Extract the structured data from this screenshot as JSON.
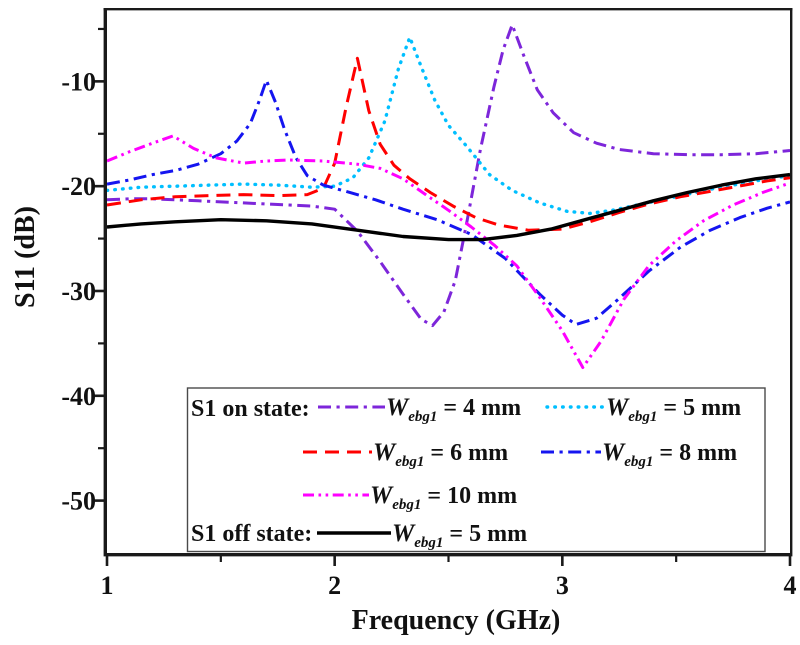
{
  "chart_data": {
    "type": "line",
    "title": "",
    "xlabel": "Frequency (GHz)",
    "ylabel": "S11 (dB)",
    "xlim": [
      1,
      4
    ],
    "ylim": [
      -55,
      -3
    ],
    "x_major_ticks": [
      1,
      2,
      3,
      4
    ],
    "x_minor_ticks": [
      1.5,
      2.5,
      3.5
    ],
    "y_major_ticks": [
      -10,
      -20,
      -30,
      -40,
      -50
    ],
    "y_minor_ticks": [
      -5,
      -15,
      -25,
      -35,
      -45
    ],
    "grid": false,
    "legend_position": "inside-bottom-center",
    "series": [
      {
        "id": "on-4mm",
        "name": "S1 on state: Webg1 = 4 mm",
        "color": "#7D26DA",
        "dash": "dashdot",
        "width": 3,
        "points": [
          [
            1.0,
            -21.3
          ],
          [
            1.1,
            -21.2
          ],
          [
            1.2,
            -21.2
          ],
          [
            1.3,
            -21.3
          ],
          [
            1.4,
            -21.4
          ],
          [
            1.5,
            -21.5
          ],
          [
            1.6,
            -21.6
          ],
          [
            1.7,
            -21.7
          ],
          [
            1.8,
            -21.8
          ],
          [
            1.9,
            -21.9
          ],
          [
            2.0,
            -22.2
          ],
          [
            2.1,
            -24.3
          ],
          [
            2.2,
            -27.2
          ],
          [
            2.3,
            -30.3
          ],
          [
            2.38,
            -32.7
          ],
          [
            2.43,
            -33.3
          ],
          [
            2.48,
            -32.0
          ],
          [
            2.53,
            -29.0
          ],
          [
            2.58,
            -23.5
          ],
          [
            2.64,
            -16.5
          ],
          [
            2.7,
            -10.5
          ],
          [
            2.74,
            -7.0
          ],
          [
            2.78,
            -4.6
          ],
          [
            2.83,
            -7.5
          ],
          [
            2.89,
            -10.8
          ],
          [
            2.96,
            -13.0
          ],
          [
            3.05,
            -14.9
          ],
          [
            3.15,
            -15.9
          ],
          [
            3.25,
            -16.5
          ],
          [
            3.4,
            -16.9
          ],
          [
            3.55,
            -17.0
          ],
          [
            3.7,
            -17.0
          ],
          [
            3.85,
            -16.9
          ],
          [
            4.0,
            -16.6
          ]
        ]
      },
      {
        "id": "on-5mm",
        "name": "S1 on state: Webg1 = 5 mm",
        "color": "#00BFFF",
        "dash": "dot",
        "width": 3.4,
        "points": [
          [
            1.0,
            -20.4
          ],
          [
            1.15,
            -20.1
          ],
          [
            1.3,
            -20.0
          ],
          [
            1.45,
            -19.9
          ],
          [
            1.6,
            -19.8
          ],
          [
            1.75,
            -19.9
          ],
          [
            1.9,
            -20.1
          ],
          [
            2.0,
            -20.0
          ],
          [
            2.08,
            -19.2
          ],
          [
            2.15,
            -17.3
          ],
          [
            2.22,
            -13.8
          ],
          [
            2.28,
            -8.8
          ],
          [
            2.33,
            -5.8
          ],
          [
            2.38,
            -8.6
          ],
          [
            2.44,
            -11.8
          ],
          [
            2.5,
            -14.2
          ],
          [
            2.58,
            -16.2
          ],
          [
            2.68,
            -18.9
          ],
          [
            2.78,
            -20.4
          ],
          [
            2.9,
            -21.6
          ],
          [
            3.02,
            -22.4
          ],
          [
            3.12,
            -22.6
          ],
          [
            3.22,
            -22.3
          ],
          [
            3.35,
            -21.7
          ],
          [
            3.5,
            -21.0
          ],
          [
            3.65,
            -20.3
          ],
          [
            3.8,
            -19.7
          ],
          [
            3.9,
            -19.3
          ],
          [
            4.0,
            -19.0
          ]
        ]
      },
      {
        "id": "on-6mm",
        "name": "S1 on state: Webg1 = 6 mm",
        "color": "#FF0000",
        "dash": "dash",
        "width": 3,
        "points": [
          [
            1.0,
            -21.8
          ],
          [
            1.15,
            -21.3
          ],
          [
            1.3,
            -21.0
          ],
          [
            1.45,
            -20.9
          ],
          [
            1.6,
            -20.8
          ],
          [
            1.75,
            -20.9
          ],
          [
            1.88,
            -20.8
          ],
          [
            1.95,
            -20.2
          ],
          [
            2.0,
            -17.8
          ],
          [
            2.05,
            -12.5
          ],
          [
            2.1,
            -7.8
          ],
          [
            2.15,
            -12.8
          ],
          [
            2.2,
            -16.0
          ],
          [
            2.26,
            -18.0
          ],
          [
            2.33,
            -19.3
          ],
          [
            2.42,
            -20.6
          ],
          [
            2.52,
            -21.9
          ],
          [
            2.62,
            -23.0
          ],
          [
            2.72,
            -23.7
          ],
          [
            2.85,
            -24.2
          ],
          [
            3.0,
            -24.1
          ],
          [
            3.12,
            -23.4
          ],
          [
            3.25,
            -22.5
          ],
          [
            3.38,
            -21.7
          ],
          [
            3.52,
            -21.0
          ],
          [
            3.65,
            -20.5
          ],
          [
            3.8,
            -19.9
          ],
          [
            3.9,
            -19.5
          ],
          [
            4.0,
            -19.2
          ]
        ]
      },
      {
        "id": "on-8mm",
        "name": "S1 on state: Webg1 = 8 mm",
        "color": "#1515F0",
        "dash": "dashdot",
        "width": 3,
        "points": [
          [
            1.0,
            -19.8
          ],
          [
            1.1,
            -19.4
          ],
          [
            1.2,
            -18.9
          ],
          [
            1.3,
            -18.5
          ],
          [
            1.4,
            -17.9
          ],
          [
            1.5,
            -16.9
          ],
          [
            1.57,
            -15.7
          ],
          [
            1.63,
            -14.0
          ],
          [
            1.67,
            -11.8
          ],
          [
            1.7,
            -9.9
          ],
          [
            1.74,
            -12.0
          ],
          [
            1.78,
            -14.6
          ],
          [
            1.83,
            -17.3
          ],
          [
            1.88,
            -19.0
          ],
          [
            1.95,
            -19.9
          ],
          [
            2.05,
            -20.5
          ],
          [
            2.18,
            -21.3
          ],
          [
            2.3,
            -22.2
          ],
          [
            2.45,
            -23.2
          ],
          [
            2.6,
            -24.6
          ],
          [
            2.75,
            -26.9
          ],
          [
            2.9,
            -30.3
          ],
          [
            3.0,
            -32.3
          ],
          [
            3.06,
            -33.2
          ],
          [
            3.15,
            -32.6
          ],
          [
            3.25,
            -30.7
          ],
          [
            3.38,
            -28.1
          ],
          [
            3.52,
            -25.8
          ],
          [
            3.65,
            -24.2
          ],
          [
            3.78,
            -23.0
          ],
          [
            3.9,
            -22.1
          ],
          [
            4.0,
            -21.5
          ]
        ]
      },
      {
        "id": "on-10mm",
        "name": "S1 on state: Webg1 = 10 mm",
        "color": "#FF00FF",
        "dash": "dashdotdot",
        "width": 3,
        "points": [
          [
            1.0,
            -17.6
          ],
          [
            1.1,
            -16.7
          ],
          [
            1.2,
            -15.9
          ],
          [
            1.29,
            -15.2
          ],
          [
            1.38,
            -16.4
          ],
          [
            1.48,
            -17.3
          ],
          [
            1.6,
            -17.8
          ],
          [
            1.7,
            -17.6
          ],
          [
            1.8,
            -17.5
          ],
          [
            1.95,
            -17.6
          ],
          [
            2.1,
            -17.9
          ],
          [
            2.2,
            -18.3
          ],
          [
            2.3,
            -19.3
          ],
          [
            2.4,
            -20.8
          ],
          [
            2.5,
            -22.3
          ],
          [
            2.6,
            -23.9
          ],
          [
            2.7,
            -25.6
          ],
          [
            2.8,
            -27.6
          ],
          [
            2.9,
            -30.6
          ],
          [
            3.0,
            -33.8
          ],
          [
            3.09,
            -37.3
          ],
          [
            3.17,
            -34.8
          ],
          [
            3.27,
            -30.8
          ],
          [
            3.38,
            -27.6
          ],
          [
            3.5,
            -25.2
          ],
          [
            3.62,
            -23.3
          ],
          [
            3.75,
            -21.8
          ],
          [
            3.88,
            -20.6
          ],
          [
            4.0,
            -19.7
          ]
        ]
      },
      {
        "id": "off-5mm",
        "name": "S1 off state: Webg1 = 5 mm",
        "color": "#000000",
        "dash": "solid",
        "width": 3.4,
        "points": [
          [
            1.0,
            -23.9
          ],
          [
            1.15,
            -23.6
          ],
          [
            1.3,
            -23.4
          ],
          [
            1.5,
            -23.2
          ],
          [
            1.7,
            -23.3
          ],
          [
            1.9,
            -23.6
          ],
          [
            2.1,
            -24.2
          ],
          [
            2.3,
            -24.8
          ],
          [
            2.5,
            -25.1
          ],
          [
            2.65,
            -25.1
          ],
          [
            2.8,
            -24.7
          ],
          [
            2.95,
            -24.1
          ],
          [
            3.1,
            -23.2
          ],
          [
            3.25,
            -22.3
          ],
          [
            3.4,
            -21.4
          ],
          [
            3.55,
            -20.6
          ],
          [
            3.7,
            -19.9
          ],
          [
            3.85,
            -19.3
          ],
          [
            4.0,
            -18.9
          ]
        ]
      }
    ]
  },
  "legend": {
    "on_group_label": "S1 on state:",
    "off_group_label": "S1 off state:",
    "symbol": "W",
    "symbol_subscript": "ebg1",
    "entries": [
      {
        "series": "on-4mm",
        "value": "= 4 mm"
      },
      {
        "series": "on-5mm",
        "value": "= 5 mm"
      },
      {
        "series": "on-6mm",
        "value": "= 6 mm"
      },
      {
        "series": "on-8mm",
        "value": "= 8 mm"
      },
      {
        "series": "on-10mm",
        "value": "= 10 mm"
      },
      {
        "series": "off-5mm",
        "value": "= 5 mm"
      }
    ]
  },
  "colors": {
    "frame": "#1a1a1a",
    "text": "#111111",
    "legend_border": "#4a4a4a",
    "background": "#ffffff"
  }
}
